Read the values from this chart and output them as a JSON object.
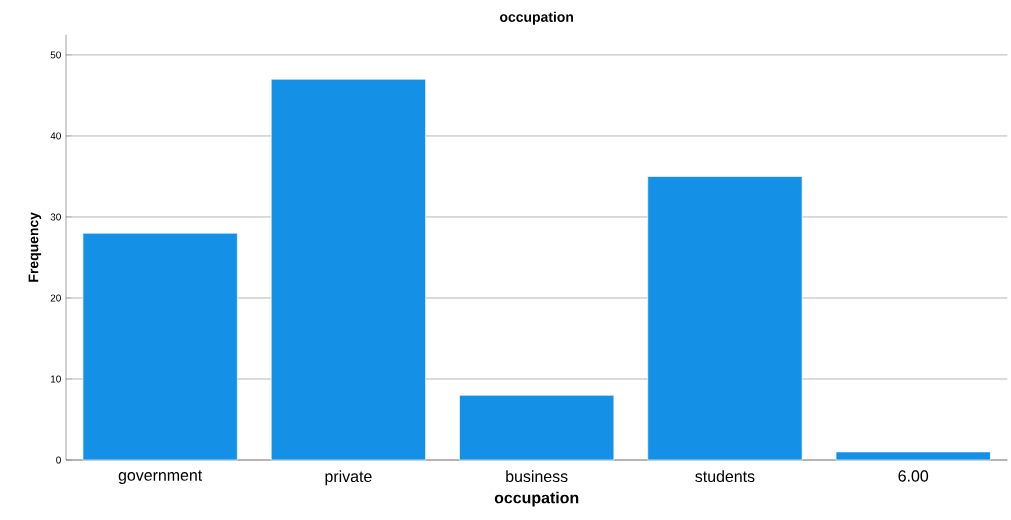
{
  "chart_data": {
    "type": "bar",
    "title": "occupation",
    "xlabel": "occupation",
    "ylabel": "Frequency",
    "categories": [
      "government",
      "private",
      "business",
      "students",
      "6.00"
    ],
    "values": [
      28,
      47,
      8,
      35,
      1
    ],
    "color": "#1490e6",
    "ylim": [
      0,
      52.5
    ],
    "yticks": [
      0,
      10,
      20,
      30,
      40,
      50
    ],
    "grid": "y"
  }
}
